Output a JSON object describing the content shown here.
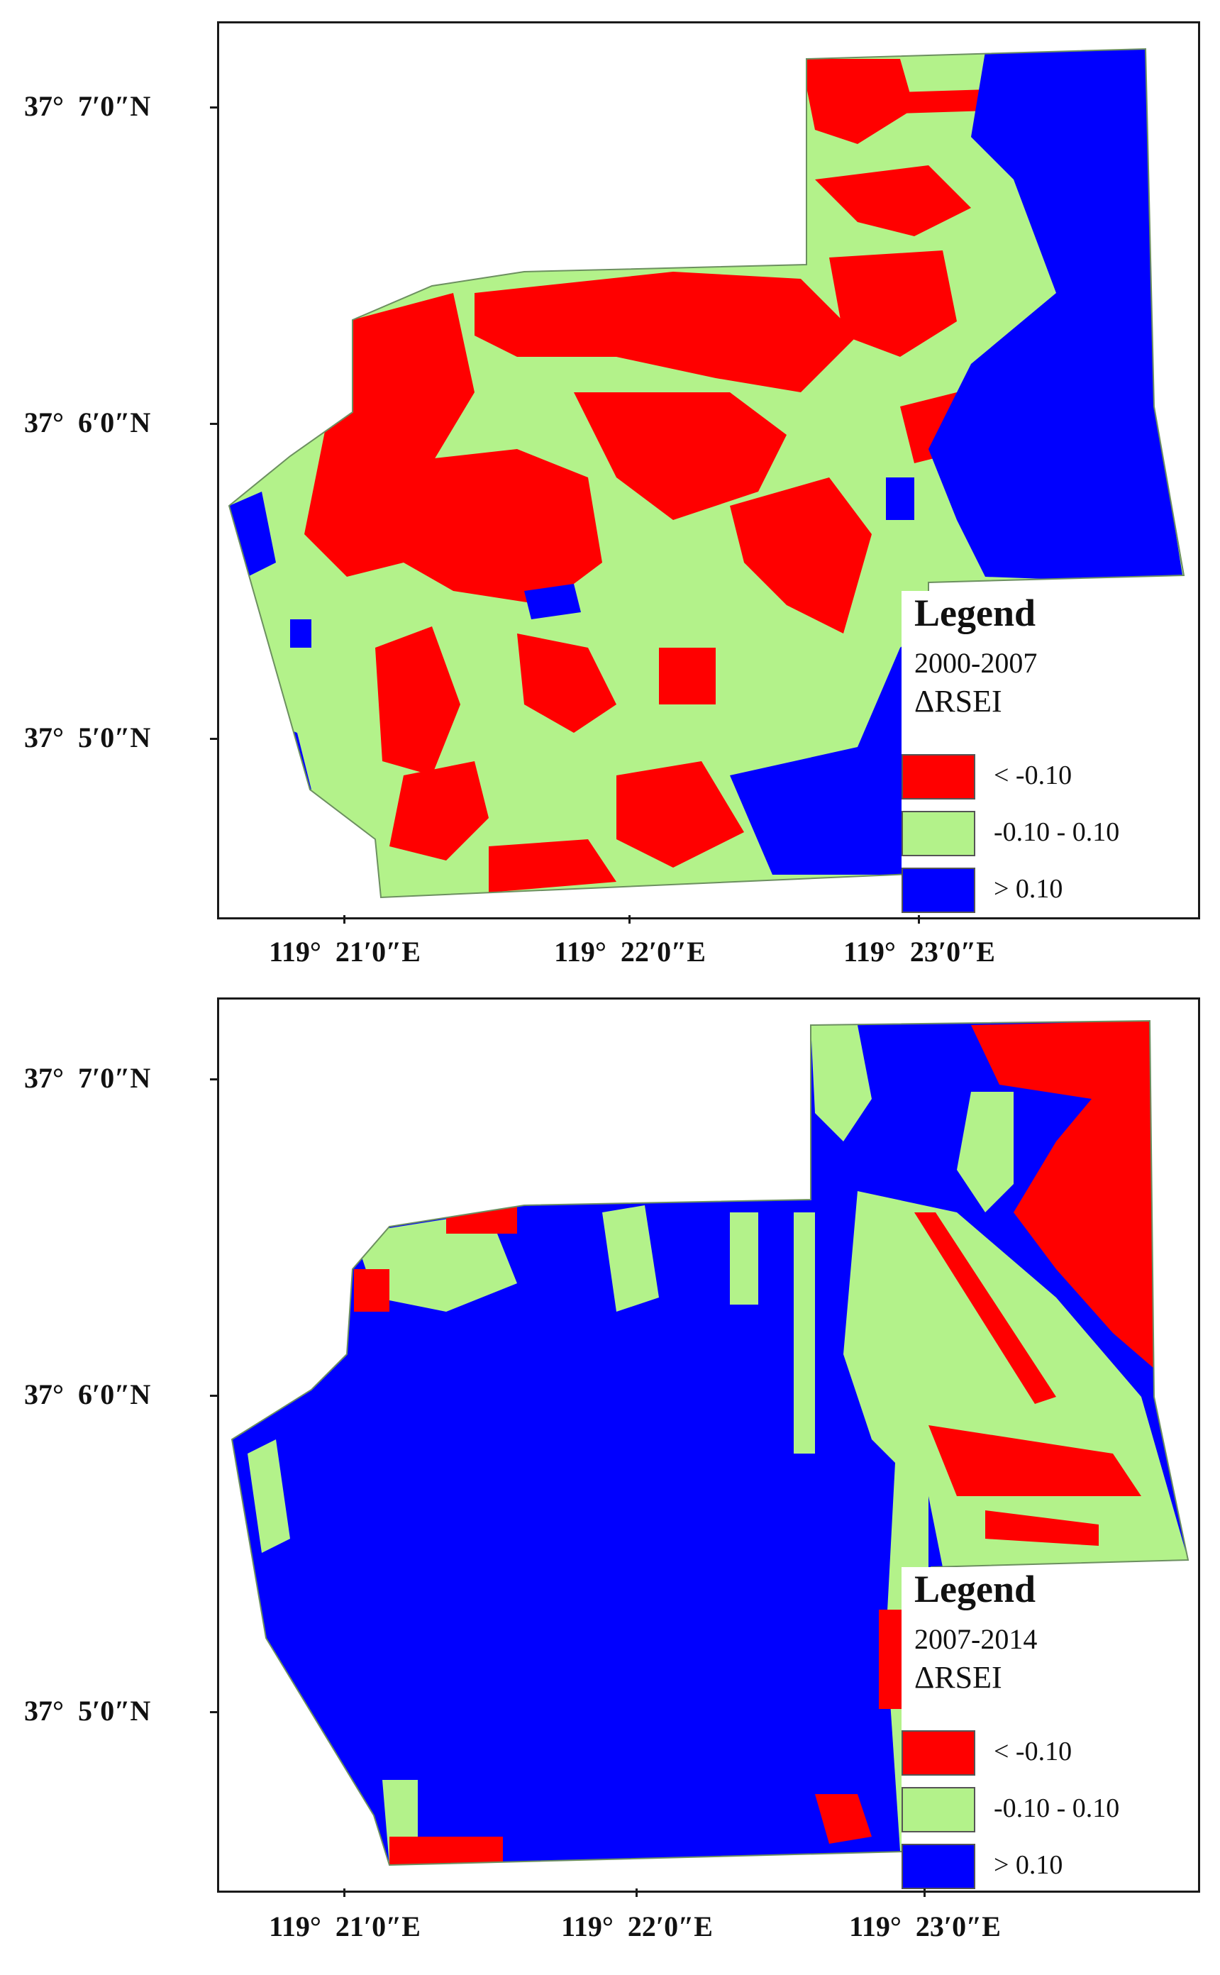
{
  "colors": {
    "decrease": "#ff0000",
    "stable": "#b3f28a",
    "increase": "#0000ff",
    "frame": "#1a1a1a"
  },
  "panels": [
    {
      "lat_labels": [
        "37°  7′0″N",
        "37°  6′0″N",
        "37°  5′0″N"
      ],
      "lon_labels": [
        "119°  21′0″E",
        "119°  22′0″E",
        "119°  23′0″E"
      ],
      "legend": {
        "title": "Legend",
        "period": "2000-2007",
        "index": "ΔRSEI",
        "items": [
          {
            "label": "< -0.10",
            "color": "#ff0000"
          },
          {
            "label": "-0.10 - 0.10",
            "color": "#b3f28a"
          },
          {
            "label": "> 0.10",
            "color": "#0000ff"
          }
        ]
      }
    },
    {
      "lat_labels": [
        "37°  7′0″N",
        "37°  6′0″N",
        "37°  5′0″N"
      ],
      "lon_labels": [
        "119°  21′0″E",
        "119°  22′0″E",
        "119°  23′0″E"
      ],
      "legend": {
        "title": "Legend",
        "period": "2007-2014",
        "index": "ΔRSEI",
        "items": [
          {
            "label": "< -0.10",
            "color": "#ff0000"
          },
          {
            "label": "-0.10 - 0.10",
            "color": "#b3f28a"
          },
          {
            "label": "> 0.10",
            "color": "#0000ff"
          }
        ]
      }
    }
  ]
}
